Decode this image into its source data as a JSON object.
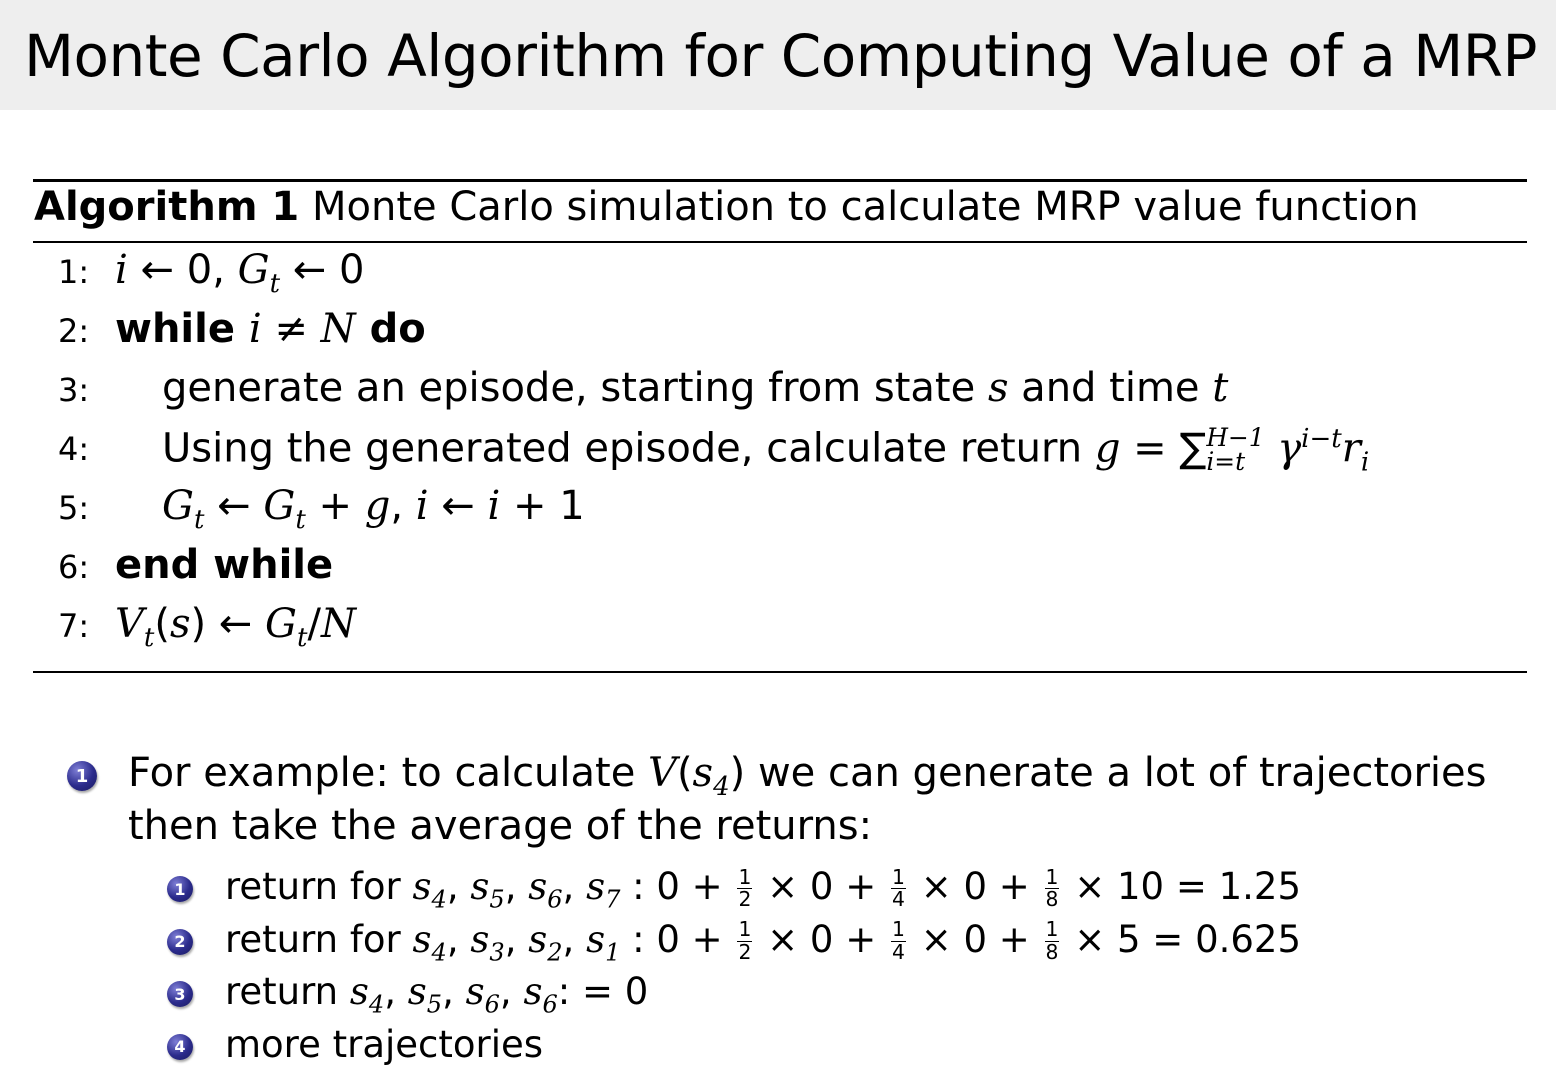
{
  "title": "Monte Carlo Algorithm for Computing Value of a MRP",
  "algorithm": {
    "label": "Algorithm 1",
    "caption": "Monte Carlo simulation to calculate MRP value function",
    "lines": [
      {
        "num": "1:",
        "indent": false,
        "segs": [
          {
            "s": "i",
            "t": "i"
          },
          {
            "s": "n",
            "t": " ← 0, "
          },
          {
            "s": "i",
            "t": "G"
          },
          {
            "s": "sub",
            "t": "t"
          },
          {
            "s": "n",
            "t": " ← 0"
          }
        ]
      },
      {
        "num": "2:",
        "indent": false,
        "segs": [
          {
            "s": "b",
            "t": "while "
          },
          {
            "s": "i",
            "t": "i"
          },
          {
            "s": "n",
            "t": " ≠ "
          },
          {
            "s": "i",
            "t": "N"
          },
          {
            "s": "b",
            "t": " do"
          }
        ]
      },
      {
        "num": "3:",
        "indent": true,
        "segs": [
          {
            "s": "n",
            "t": "generate an episode, starting from state "
          },
          {
            "s": "i",
            "t": "s"
          },
          {
            "s": "n",
            "t": " and time "
          },
          {
            "s": "i",
            "t": "t"
          }
        ]
      },
      {
        "num": "4:",
        "indent": true,
        "segs": [
          {
            "s": "n",
            "t": "Using the generated episode, calculate return "
          },
          {
            "s": "i",
            "t": "g"
          },
          {
            "s": "n",
            "t": " = ∑"
          },
          {
            "s": "supsub",
            "sup": "H−1",
            "sub": "i=t"
          },
          {
            "s": "i",
            "t": " γ"
          },
          {
            "s": "sup",
            "t": "i−t"
          },
          {
            "s": "i",
            "t": "r"
          },
          {
            "s": "sub",
            "t": "i"
          }
        ]
      },
      {
        "num": "5:",
        "indent": true,
        "segs": [
          {
            "s": "i",
            "t": "G"
          },
          {
            "s": "sub",
            "t": "t"
          },
          {
            "s": "n",
            "t": " ← "
          },
          {
            "s": "i",
            "t": "G"
          },
          {
            "s": "sub",
            "t": "t"
          },
          {
            "s": "n",
            "t": " + "
          },
          {
            "s": "i",
            "t": "g"
          },
          {
            "s": "n",
            "t": ", "
          },
          {
            "s": "i",
            "t": "i"
          },
          {
            "s": "n",
            "t": " ← "
          },
          {
            "s": "i",
            "t": "i"
          },
          {
            "s": "n",
            "t": " + 1"
          }
        ]
      },
      {
        "num": "6:",
        "indent": false,
        "segs": [
          {
            "s": "b",
            "t": "end while"
          }
        ]
      },
      {
        "num": "7:",
        "indent": false,
        "segs": [
          {
            "s": "i",
            "t": "V"
          },
          {
            "s": "sub",
            "t": "t"
          },
          {
            "s": "n",
            "t": "("
          },
          {
            "s": "i",
            "t": "s"
          },
          {
            "s": "n",
            "t": ") ← "
          },
          {
            "s": "i",
            "t": "G"
          },
          {
            "s": "sub",
            "t": "t"
          },
          {
            "s": "n",
            "t": "/"
          },
          {
            "s": "i",
            "t": "N"
          }
        ]
      }
    ]
  },
  "bullet": {
    "marker": "1",
    "line1": [
      {
        "s": "n",
        "t": "For example: to calculate "
      },
      {
        "s": "i",
        "t": "V"
      },
      {
        "s": "n",
        "t": "("
      },
      {
        "s": "i",
        "t": "s"
      },
      {
        "s": "sub",
        "t": "4"
      },
      {
        "s": "n",
        "t": ") we can generate a lot of trajectories"
      }
    ],
    "line2": [
      {
        "s": "n",
        "t": "then take the average of the returns:"
      }
    ],
    "subitems": [
      {
        "marker": "1",
        "segs": [
          {
            "s": "n",
            "t": "return for "
          },
          {
            "s": "i",
            "t": "s"
          },
          {
            "s": "sub",
            "t": "4"
          },
          {
            "s": "n",
            "t": ", "
          },
          {
            "s": "i",
            "t": "s"
          },
          {
            "s": "sub",
            "t": "5"
          },
          {
            "s": "n",
            "t": ", "
          },
          {
            "s": "i",
            "t": "s"
          },
          {
            "s": "sub",
            "t": "6"
          },
          {
            "s": "n",
            "t": ", "
          },
          {
            "s": "i",
            "t": "s"
          },
          {
            "s": "sub",
            "t": "7"
          },
          {
            "s": "n",
            "t": " : 0 + "
          },
          {
            "s": "frac",
            "num": "1",
            "den": "2"
          },
          {
            "s": "n",
            "t": " × 0 + "
          },
          {
            "s": "frac",
            "num": "1",
            "den": "4"
          },
          {
            "s": "n",
            "t": " × 0 + "
          },
          {
            "s": "frac",
            "num": "1",
            "den": "8"
          },
          {
            "s": "n",
            "t": " × 10 = 1.25"
          }
        ]
      },
      {
        "marker": "2",
        "segs": [
          {
            "s": "n",
            "t": "return for "
          },
          {
            "s": "i",
            "t": "s"
          },
          {
            "s": "sub",
            "t": "4"
          },
          {
            "s": "n",
            "t": ", "
          },
          {
            "s": "i",
            "t": "s"
          },
          {
            "s": "sub",
            "t": "3"
          },
          {
            "s": "n",
            "t": ", "
          },
          {
            "s": "i",
            "t": "s"
          },
          {
            "s": "sub",
            "t": "2"
          },
          {
            "s": "n",
            "t": ", "
          },
          {
            "s": "i",
            "t": "s"
          },
          {
            "s": "sub",
            "t": "1"
          },
          {
            "s": "n",
            "t": " : 0 + "
          },
          {
            "s": "frac",
            "num": "1",
            "den": "2"
          },
          {
            "s": "n",
            "t": " × 0 + "
          },
          {
            "s": "frac",
            "num": "1",
            "den": "4"
          },
          {
            "s": "n",
            "t": " × 0 + "
          },
          {
            "s": "frac",
            "num": "1",
            "den": "8"
          },
          {
            "s": "n",
            "t": " × 5 = 0.625"
          }
        ]
      },
      {
        "marker": "3",
        "segs": [
          {
            "s": "n",
            "t": "return "
          },
          {
            "s": "i",
            "t": "s"
          },
          {
            "s": "sub",
            "t": "4"
          },
          {
            "s": "n",
            "t": ", "
          },
          {
            "s": "i",
            "t": "s"
          },
          {
            "s": "sub",
            "t": "5"
          },
          {
            "s": "n",
            "t": ", "
          },
          {
            "s": "i",
            "t": "s"
          },
          {
            "s": "sub",
            "t": "6"
          },
          {
            "s": "n",
            "t": ", "
          },
          {
            "s": "i",
            "t": "s"
          },
          {
            "s": "sub",
            "t": "6"
          },
          {
            "s": "n",
            "t": ": = 0"
          }
        ]
      },
      {
        "marker": "4",
        "segs": [
          {
            "s": "n",
            "t": "more trajectories"
          }
        ]
      }
    ]
  },
  "colors": {
    "titlebar": "#eeeeee",
    "bullet": "#2b2b8c"
  }
}
